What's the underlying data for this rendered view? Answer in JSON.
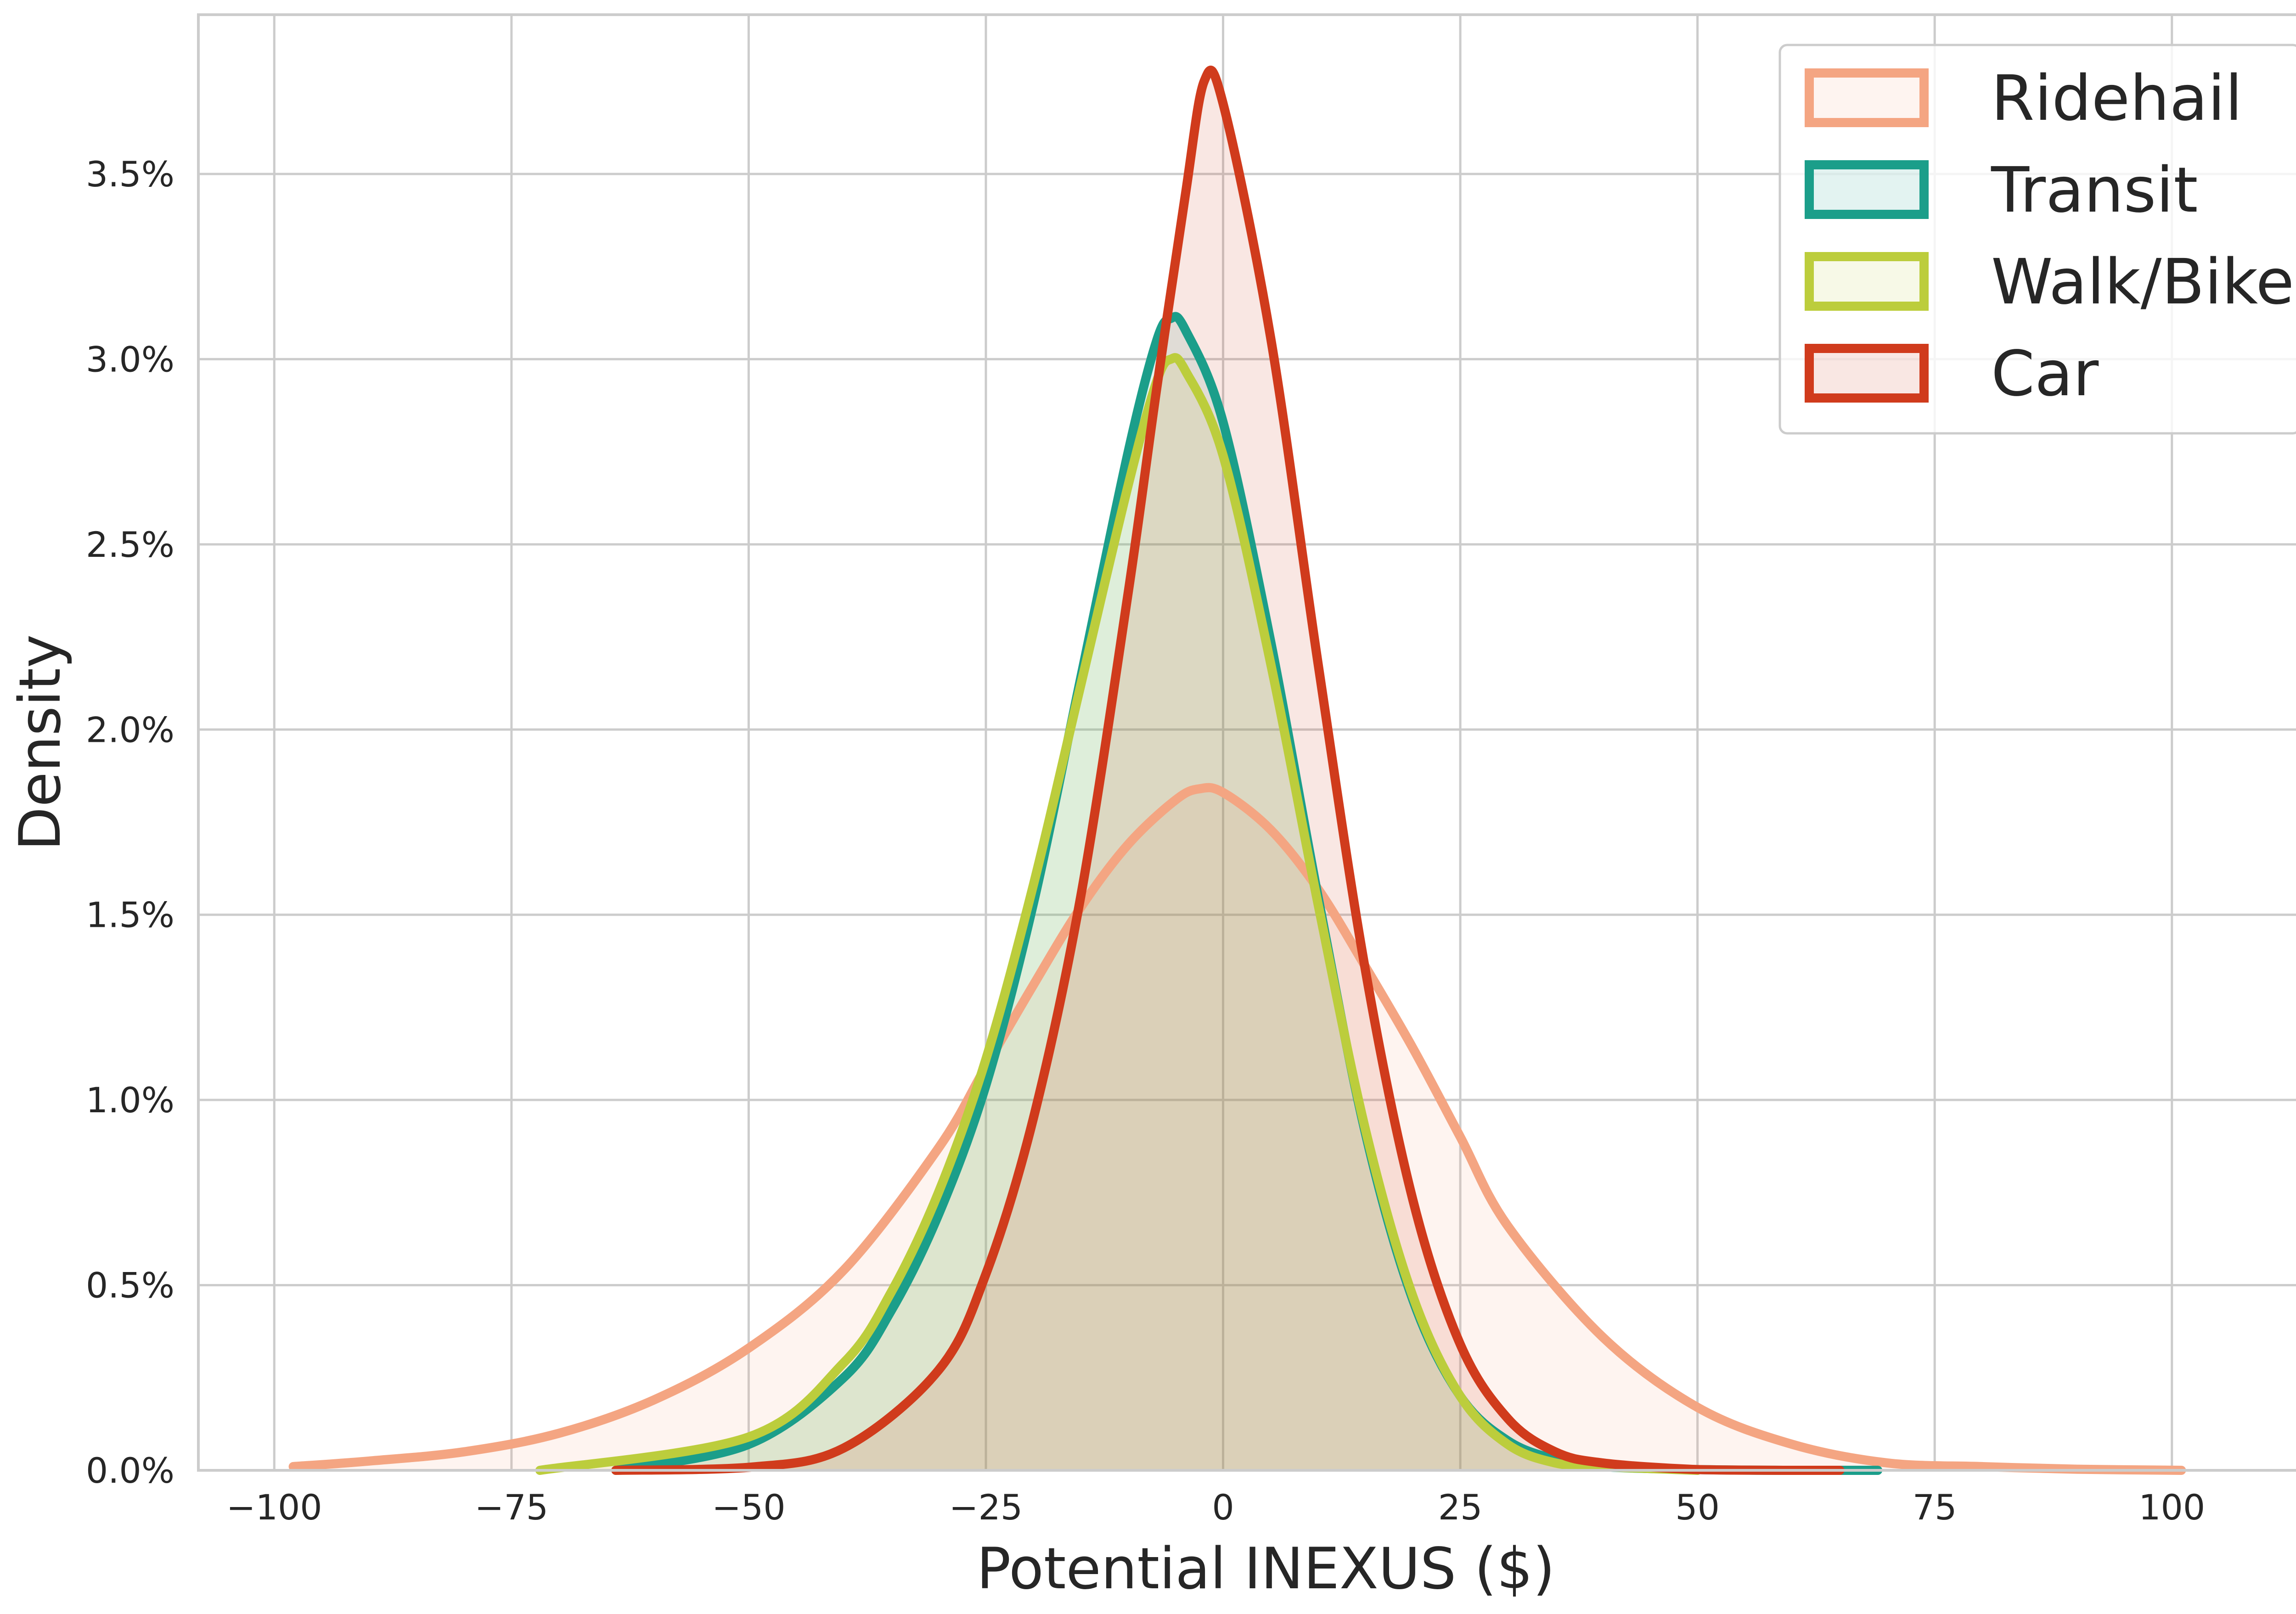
{
  "chart_data": {
    "type": "area",
    "xlabel": "Potential INEXUS ($)",
    "ylabel": "Density",
    "xlim": [
      -108,
      117
    ],
    "ylim": [
      0,
      0.0393
    ],
    "x_ticks": [
      -100,
      -75,
      -50,
      -25,
      0,
      25,
      50,
      75,
      100
    ],
    "x_tick_labels": [
      "−100",
      "−75",
      "−50",
      "−25",
      "0",
      "25",
      "50",
      "75",
      "100"
    ],
    "y_ticks": [
      0,
      0.005,
      0.01,
      0.015,
      0.02,
      0.025,
      0.03,
      0.035
    ],
    "y_tick_labels": [
      "0.0%",
      "0.5%",
      "1.0%",
      "1.5%",
      "2.0%",
      "2.5%",
      "3.0%",
      "3.5%"
    ],
    "grid": true,
    "legend_position": "top-right",
    "series": [
      {
        "name": "Ridehail",
        "color": "#f4a582",
        "fill_opacity": 0.12,
        "x": [
          -98,
          -90,
          -80,
          -70,
          -60,
          -50,
          -40,
          -30,
          -25,
          -20,
          -15,
          -10,
          -5,
          -2.5,
          0,
          5,
          10,
          15,
          20,
          25,
          30,
          40,
          50,
          60,
          70,
          80,
          90,
          101
        ],
        "y": [
          0.0001,
          0.00025,
          0.0005,
          0.001,
          0.0019,
          0.0033,
          0.0054,
          0.0087,
          0.0109,
          0.0131,
          0.0152,
          0.0169,
          0.0181,
          0.0184,
          0.0183,
          0.0173,
          0.0157,
          0.0136,
          0.0114,
          0.009,
          0.0066,
          0.0036,
          0.0017,
          0.0007,
          0.0002,
          0.0001,
          3e-05,
          0.0
        ]
      },
      {
        "name": "Transit",
        "color": "#1b9e8a",
        "fill_opacity": 0.12,
        "x": [
          -64,
          -50,
          -40,
          -35,
          -30,
          -25,
          -20,
          -15,
          -10,
          -7,
          -5.5,
          -4,
          0,
          5,
          10,
          15,
          20,
          25,
          30,
          35,
          40,
          50,
          60,
          69
        ],
        "y": [
          0.0,
          0.0007,
          0.0025,
          0.0043,
          0.0069,
          0.0104,
          0.0153,
          0.0214,
          0.0275,
          0.0305,
          0.0311,
          0.0308,
          0.0283,
          0.0224,
          0.0155,
          0.0091,
          0.0046,
          0.002,
          0.0008,
          0.0003,
          0.0001,
          2e-05,
          0.0,
          0.0
        ]
      },
      {
        "name": "Walk/Bike",
        "color": "#bccd3c",
        "fill_opacity": 0.12,
        "x": [
          -72,
          -50,
          -40,
          -35,
          -30,
          -25,
          -20,
          -15,
          -10,
          -7,
          -5.5,
          -4,
          0,
          5,
          10,
          15,
          20,
          25,
          30,
          35,
          40,
          50
        ],
        "y": [
          0.0,
          0.0009,
          0.0029,
          0.0048,
          0.0075,
          0.0111,
          0.0158,
          0.0212,
          0.0266,
          0.0294,
          0.03,
          0.0297,
          0.0274,
          0.0218,
          0.0153,
          0.0092,
          0.0047,
          0.002,
          0.0007,
          0.0002,
          0.0001,
          0.0
        ]
      },
      {
        "name": "Car",
        "color": "#d03b1c",
        "fill_opacity": 0.12,
        "x": [
          -64,
          -50,
          -40,
          -30,
          -25,
          -20,
          -15,
          -10,
          -7,
          -4,
          -2,
          0,
          5,
          10,
          15,
          20,
          25,
          30,
          35,
          40,
          50,
          60,
          65
        ],
        "y": [
          0.0,
          8e-05,
          0.0006,
          0.0027,
          0.0053,
          0.0095,
          0.0155,
          0.0237,
          0.0292,
          0.0344,
          0.0375,
          0.0369,
          0.0306,
          0.0218,
          0.0135,
          0.0073,
          0.0034,
          0.0014,
          0.0005,
          0.0002,
          2e-05,
          0.0,
          0.0
        ]
      }
    ]
  }
}
